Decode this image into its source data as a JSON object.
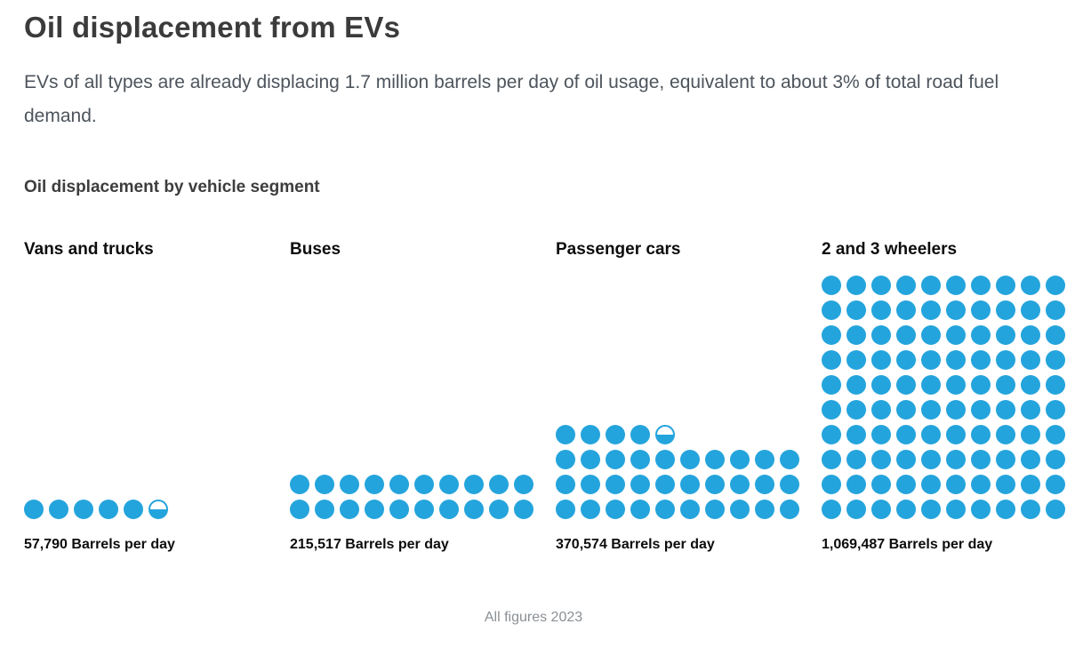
{
  "header": {
    "title": "Oil displacement from EVs",
    "subtitle": "EVs of all types are already displacing 1.7 million barrels per day of oil usage, equivalent to about 3% of total road fuel demand."
  },
  "colors": {
    "dot_blue": "#24a4dc"
  },
  "chart_data": {
    "type": "pictogram",
    "title": "Oil displacement by vehicle segment",
    "unit": "Barrels per day",
    "categories": [
      "Vans and trucks",
      "Buses",
      "Passenger cars",
      "2 and 3 wheelers"
    ],
    "values": [
      57790,
      215517,
      370574,
      1069487
    ],
    "value_labels": [
      "57,790 Barrels per day",
      "215,517 Barrels per day",
      "370,574 Barrels per day",
      "1,069,487 Barrels per day"
    ],
    "dots": [
      {
        "full": 5,
        "half": true,
        "per_row": 10
      },
      {
        "full": 20,
        "half": false,
        "per_row": 10
      },
      {
        "full": 34,
        "half": true,
        "per_row": 10
      },
      {
        "full": 100,
        "half": false,
        "per_row": 10
      }
    ],
    "legend_position": "none",
    "note": "All figures 2023"
  }
}
